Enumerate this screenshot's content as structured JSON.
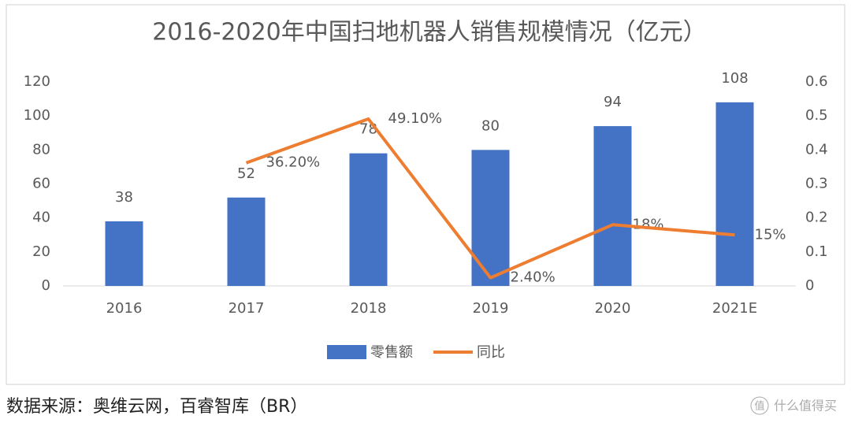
{
  "chart_data": {
    "type": "bar",
    "title": "2016-2020年中国扫地机器人销售规模情况（亿元）",
    "categories": [
      "2016",
      "2017",
      "2018",
      "2019",
      "2020",
      "2021E"
    ],
    "series": [
      {
        "name": "零售额",
        "type": "bar",
        "color": "#4472c4",
        "values": [
          38,
          52,
          78,
          80,
          94,
          108
        ]
      },
      {
        "name": "同比",
        "type": "line",
        "axis": "y2",
        "color": "#ed7d31",
        "values": [
          null,
          0.362,
          0.491,
          0.024,
          0.18,
          0.15
        ],
        "value_labels": [
          null,
          "36.20%",
          "49.10%",
          "2.40%",
          "18%",
          "15%"
        ]
      }
    ],
    "ylim": [
      0,
      120
    ],
    "yticks": [
      0,
      20,
      40,
      60,
      80,
      100,
      120
    ],
    "y2lim": [
      0,
      0.6
    ],
    "y2ticks": [
      0,
      0.1,
      0.2,
      0.3,
      0.4,
      0.5,
      0.6
    ],
    "grid": false,
    "legend": "bottom"
  },
  "source": "数据来源：奥维云网，百睿智库（BR）",
  "watermark_icon": "值",
  "watermark": "什么值得买"
}
